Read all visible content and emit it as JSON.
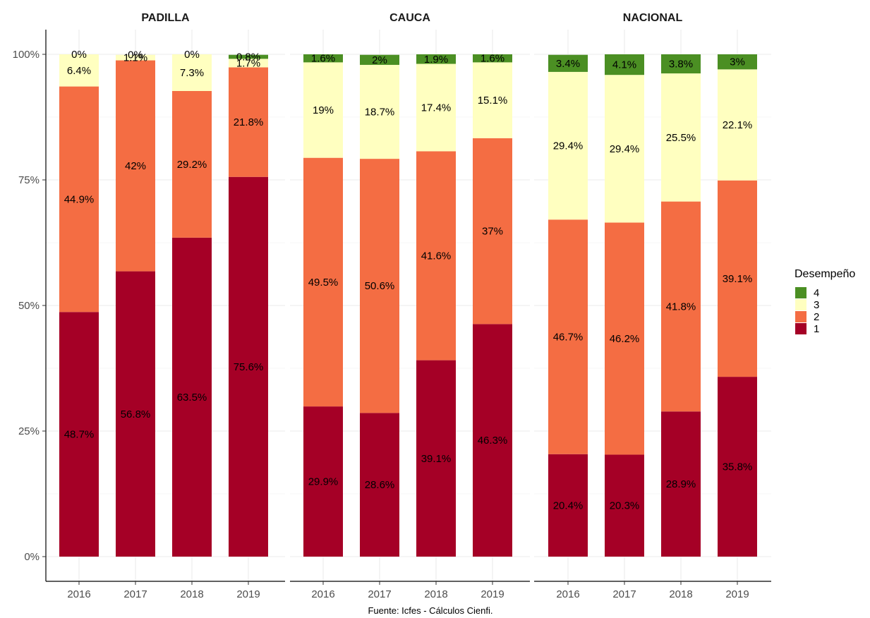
{
  "chart_data": {
    "type": "bar",
    "stacked": true,
    "caption": "Fuente: Icfes - Cálculos Cienfi.",
    "yaxis": {
      "ylim": [
        0,
        100
      ],
      "ticks": [
        0,
        25,
        50,
        75,
        100
      ],
      "tick_labels": [
        "0%",
        "25%",
        "50%",
        "75%",
        "100%"
      ]
    },
    "grid": true,
    "legend": {
      "title": "Desempeño",
      "position": "right",
      "entries": [
        {
          "level": "4",
          "color": "#4b8f23"
        },
        {
          "level": "3",
          "color": "#ffffc0"
        },
        {
          "level": "2",
          "color": "#f46d43"
        },
        {
          "level": "1",
          "color": "#a50026"
        }
      ]
    },
    "categories": [
      "2016",
      "2017",
      "2018",
      "2019"
    ],
    "facets": [
      {
        "title": "PADILLA",
        "series": [
          {
            "level": "1",
            "values": [
              48.7,
              56.8,
              63.5,
              75.6
            ],
            "labels": [
              "48.7%",
              "56.8%",
              "63.5%",
              "75.6%"
            ]
          },
          {
            "level": "2",
            "values": [
              44.9,
              42,
              29.2,
              21.8
            ],
            "labels": [
              "44.9%",
              "42%",
              "29.2%",
              "21.8%"
            ]
          },
          {
            "level": "3",
            "values": [
              6.4,
              1.1,
              7.3,
              1.7
            ],
            "labels": [
              "6.4%",
              "1.1%",
              "7.3%",
              "1.7%"
            ]
          },
          {
            "level": "4",
            "values": [
              0,
              0,
              0,
              0.8
            ],
            "labels": [
              "0%",
              "0%",
              "0%",
              "0.8%"
            ]
          }
        ]
      },
      {
        "title": "CAUCA",
        "series": [
          {
            "level": "1",
            "values": [
              29.9,
              28.6,
              39.1,
              46.3
            ],
            "labels": [
              "29.9%",
              "28.6%",
              "39.1%",
              "46.3%"
            ]
          },
          {
            "level": "2",
            "values": [
              49.5,
              50.6,
              41.6,
              37
            ],
            "labels": [
              "49.5%",
              "50.6%",
              "41.6%",
              "37%"
            ]
          },
          {
            "level": "3",
            "values": [
              19,
              18.7,
              17.4,
              15.1
            ],
            "labels": [
              "19%",
              "18.7%",
              "17.4%",
              "15.1%"
            ]
          },
          {
            "level": "4",
            "values": [
              1.6,
              2,
              1.9,
              1.6
            ],
            "labels": [
              "1.6%",
              "2%",
              "1.9%",
              "1.6%"
            ]
          }
        ]
      },
      {
        "title": "NACIONAL",
        "series": [
          {
            "level": "1",
            "values": [
              20.4,
              20.3,
              28.9,
              35.8
            ],
            "labels": [
              "20.4%",
              "20.3%",
              "28.9%",
              "35.8%"
            ]
          },
          {
            "level": "2",
            "values": [
              46.7,
              46.2,
              41.8,
              39.1
            ],
            "labels": [
              "46.7%",
              "46.2%",
              "41.8%",
              "39.1%"
            ]
          },
          {
            "level": "3",
            "values": [
              29.4,
              29.4,
              25.5,
              22.1
            ],
            "labels": [
              "29.4%",
              "29.4%",
              "25.5%",
              "22.1%"
            ]
          },
          {
            "level": "4",
            "values": [
              3.4,
              4.1,
              3.8,
              3
            ],
            "labels": [
              "3.4%",
              "4.1%",
              "3.8%",
              "3%"
            ]
          }
        ]
      }
    ]
  }
}
